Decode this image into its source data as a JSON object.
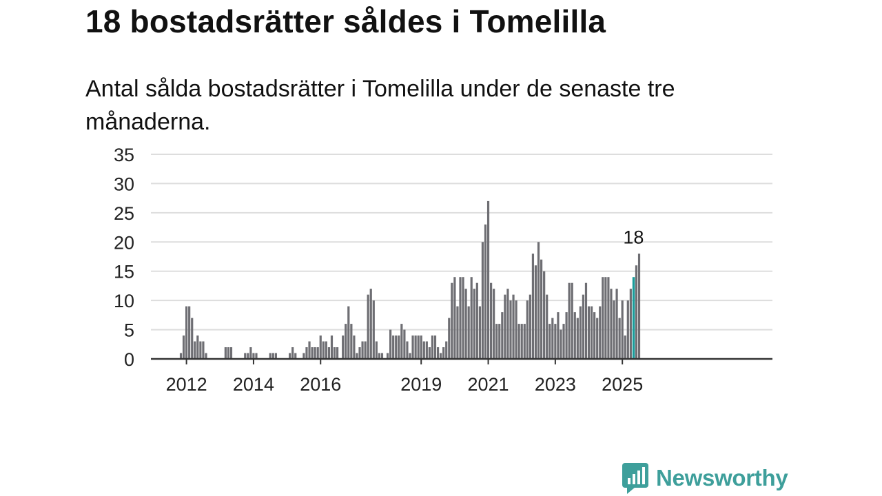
{
  "title": "18 bostadsrätter såldes i Tomelilla",
  "subtitle": "Antal sålda bostadsrätter i Tomelilla under de senaste tre månaderna.",
  "brand": {
    "name": "Newsworthy",
    "color": "#3e9f9b",
    "icon": "newsworthy-logo-icon"
  },
  "colors": {
    "bar": "#6e6e73",
    "highlight": "#1a9c9a",
    "grid": "#dddddd",
    "axis": "#333333"
  },
  "chart_data": {
    "type": "bar",
    "title": "18 bostadsrätter såldes i Tomelilla",
    "subtitle": "Antal sålda bostadsrätter i Tomelilla under de senaste tre månaderna.",
    "xlabel": "",
    "ylabel": "",
    "frequency": "monthly",
    "x_start": "2011-11",
    "ylim": [
      0,
      35
    ],
    "yticks": [
      0,
      5,
      10,
      15,
      20,
      25,
      30,
      35
    ],
    "xtick_labels": [
      {
        "label": "2012",
        "date": "2012-01"
      },
      {
        "label": "2014",
        "date": "2014-01"
      },
      {
        "label": "2016",
        "date": "2016-01"
      },
      {
        "label": "2019",
        "date": "2019-01"
      },
      {
        "label": "2021",
        "date": "2021-01"
      },
      {
        "label": "2023",
        "date": "2023-01"
      },
      {
        "label": "2025",
        "date": "2025-01"
      }
    ],
    "grid": true,
    "highlight": {
      "date": "2025-05",
      "value": 18,
      "label": "18"
    },
    "series": [
      {
        "values": [
          1,
          4,
          9,
          9,
          7,
          3,
          4,
          3,
          3,
          1,
          0,
          0,
          0,
          0,
          0,
          0,
          2,
          2,
          2,
          0,
          0,
          0,
          0,
          1,
          1,
          2,
          1,
          1,
          0,
          0,
          0,
          0,
          1,
          1,
          1,
          0,
          0,
          0,
          0,
          1,
          2,
          1,
          0,
          0,
          1,
          2,
          3,
          2,
          2,
          2,
          4,
          3,
          3,
          2,
          4,
          2,
          2,
          0,
          4,
          6,
          9,
          6,
          4,
          1,
          2,
          3,
          3,
          11,
          12,
          10,
          3,
          1,
          1,
          0,
          1,
          5,
          4,
          4,
          4,
          6,
          5,
          3,
          1,
          4,
          4,
          4,
          4,
          3,
          3,
          2,
          4,
          4,
          2,
          1,
          2,
          3,
          7,
          13,
          14,
          9,
          14,
          14,
          12,
          9,
          14,
          12,
          13,
          9,
          20,
          23,
          27,
          13,
          12,
          6,
          6,
          8,
          11,
          12,
          10,
          11,
          10,
          6,
          6,
          6,
          10,
          11,
          18,
          16,
          20,
          17,
          15,
          11,
          6,
          7,
          6,
          8,
          5,
          6,
          8,
          13,
          13,
          8,
          7,
          9,
          11,
          13,
          9,
          9,
          8,
          7,
          9,
          14,
          14,
          14,
          12,
          10,
          12,
          7,
          10,
          4,
          10,
          12,
          14,
          16,
          18
        ]
      }
    ]
  }
}
